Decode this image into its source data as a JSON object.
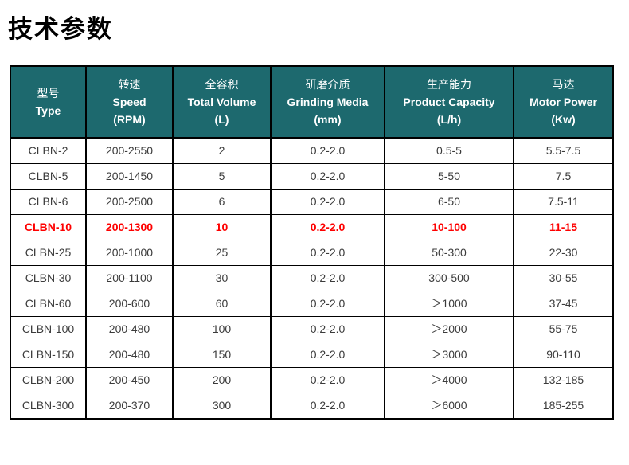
{
  "page_title": "技术参数",
  "colors": {
    "header_bg": "#1d696e",
    "header_text": "#ffffff",
    "body_text": "#3b3b3b",
    "highlight_text": "#fe0000",
    "border": "#000000"
  },
  "table": {
    "columns": [
      {
        "zh": "型号",
        "en": "Type",
        "unit": ""
      },
      {
        "zh": "转速",
        "en": "Speed",
        "unit": "(RPM)"
      },
      {
        "zh": "全容积",
        "en": "Total Volume",
        "unit": "(L)"
      },
      {
        "zh": "研磨介质",
        "en": "Grinding Media",
        "unit": "(mm)"
      },
      {
        "zh": "生产能力",
        "en": "Product Capacity",
        "unit": "(L/h)"
      },
      {
        "zh": "马达",
        "en": "Motor Power",
        "unit": "(Kw)"
      }
    ],
    "rows": [
      {
        "highlighted": false,
        "cells": [
          "CLBN-2",
          "200-2550",
          "2",
          "0.2-2.0",
          "0.5-5",
          "5.5-7.5"
        ]
      },
      {
        "highlighted": false,
        "cells": [
          "CLBN-5",
          "200-1450",
          "5",
          "0.2-2.0",
          "5-50",
          "7.5"
        ]
      },
      {
        "highlighted": false,
        "cells": [
          "CLBN-6",
          "200-2500",
          "6",
          "0.2-2.0",
          "6-50",
          "7.5-11"
        ]
      },
      {
        "highlighted": true,
        "cells": [
          "CLBN-10",
          "200-1300",
          "10",
          "0.2-2.0",
          "10-100",
          "11-15"
        ]
      },
      {
        "highlighted": false,
        "cells": [
          "CLBN-25",
          "200-1000",
          "25",
          "0.2-2.0",
          "50-300",
          "22-30"
        ]
      },
      {
        "highlighted": false,
        "cells": [
          "CLBN-30",
          "200-1100",
          "30",
          "0.2-2.0",
          "300-500",
          "30-55"
        ]
      },
      {
        "highlighted": false,
        "cells": [
          "CLBN-60",
          "200-600",
          "60",
          "0.2-2.0",
          "＞1000",
          "37-45"
        ]
      },
      {
        "highlighted": false,
        "cells": [
          "CLBN-100",
          "200-480",
          "100",
          "0.2-2.0",
          "＞2000",
          "55-75"
        ]
      },
      {
        "highlighted": false,
        "cells": [
          "CLBN-150",
          "200-480",
          "150",
          "0.2-2.0",
          "＞3000",
          "90-110"
        ]
      },
      {
        "highlighted": false,
        "cells": [
          "CLBN-200",
          "200-450",
          "200",
          "0.2-2.0",
          "＞4000",
          "132-185"
        ]
      },
      {
        "highlighted": false,
        "cells": [
          "CLBN-300",
          "200-370",
          "300",
          "0.2-2.0",
          "＞6000",
          "185-255"
        ]
      }
    ]
  }
}
